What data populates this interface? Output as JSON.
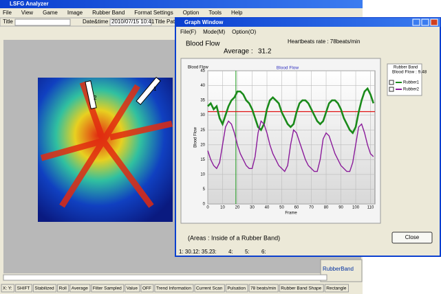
{
  "main_window": {
    "title": "LSFG Analyzer",
    "menu": [
      "File",
      "View",
      "Game",
      "Image",
      "Rubber Band",
      "Format Settings",
      "Option",
      "Tools",
      "Help"
    ],
    "toolbar": {
      "title_label": "Title :",
      "datetime_label": "Date&time :",
      "datetime_value": "2010/07/15 10:41",
      "path_label": "Title Path :"
    },
    "image_labels": [
      "2",
      "1"
    ],
    "rubber_band_label": "RubberBand",
    "status": [
      "X: Y:",
      "SHIFT",
      "Stabilized",
      "Roll",
      "Average",
      "Filter Sampled",
      "Value",
      "OFF",
      "Trend Information",
      "Current Scan",
      "Pulsation",
      "78 beats/min",
      "Rubber Band Shape",
      "Rectangle"
    ]
  },
  "graph_window": {
    "title": "Graph Window",
    "menu": [
      "File(F)",
      "Mode(M)",
      "Option(O)"
    ],
    "heading": "Blood Flow",
    "heartbeat": "Heartbeats rate : 78beats/min",
    "average_label": "Average :",
    "average": 31.2,
    "legend_title": "Rubber Band",
    "legend_value": "Blood Flow : 9.48",
    "note": "(Areas : Inside of a Rubber Band)",
    "close": "Close",
    "readout": [
      "1: 30.1",
      "2: 35.2",
      "3:",
      "4:",
      "5:",
      "6:"
    ],
    "chart": {
      "type": "line",
      "title": "Blood Flow",
      "x_label": "Frame",
      "y_label": "Blood Flow",
      "grid": true,
      "cursor_frame": 19,
      "x": [
        0,
        2,
        4,
        6,
        8,
        10,
        12,
        14,
        16,
        18,
        20,
        22,
        24,
        26,
        28,
        30,
        32,
        34,
        36,
        38,
        40,
        42,
        44,
        46,
        48,
        50,
        52,
        54,
        56,
        58,
        60,
        62,
        64,
        66,
        68,
        70,
        72,
        74,
        76,
        78,
        80,
        82,
        84,
        86,
        88,
        90,
        92,
        94,
        96,
        98,
        100,
        102,
        104,
        106,
        108,
        110,
        112
      ],
      "series": [
        {
          "name": "Rubber1",
          "color": "#1a8a1a",
          "values": [
            33,
            34,
            32,
            33,
            29,
            27,
            30,
            33,
            35,
            36,
            38,
            38,
            37,
            35,
            34,
            32,
            29,
            26,
            25,
            27,
            32,
            35,
            36,
            35,
            34,
            31,
            29,
            27,
            26,
            27,
            31,
            34,
            35,
            35,
            34,
            32,
            30,
            28,
            27,
            28,
            31,
            34,
            35,
            35,
            34,
            32,
            29,
            27,
            25,
            24,
            26,
            31,
            35,
            38,
            39,
            37,
            34
          ]
        },
        {
          "name": "Rubber2",
          "color": "#8a1a9a",
          "values": [
            18,
            15,
            13,
            12,
            14,
            20,
            26,
            28,
            27,
            24,
            20,
            17,
            15,
            13,
            12,
            12,
            16,
            24,
            28,
            27,
            24,
            20,
            17,
            15,
            13,
            12,
            11,
            13,
            20,
            25,
            24,
            21,
            18,
            15,
            13,
            12,
            11,
            11,
            15,
            22,
            24,
            23,
            20,
            17,
            15,
            13,
            12,
            11,
            11,
            14,
            20,
            26,
            27,
            24,
            20,
            17,
            16
          ]
        }
      ],
      "xlim": [
        0,
        113
      ],
      "xticks": [
        0,
        10,
        20,
        30,
        40,
        50,
        60,
        70,
        80,
        90,
        100,
        110
      ],
      "ylim": [
        0,
        45
      ],
      "yticks": [
        0,
        5,
        10,
        15,
        20,
        25,
        30,
        35,
        40,
        45
      ]
    }
  }
}
